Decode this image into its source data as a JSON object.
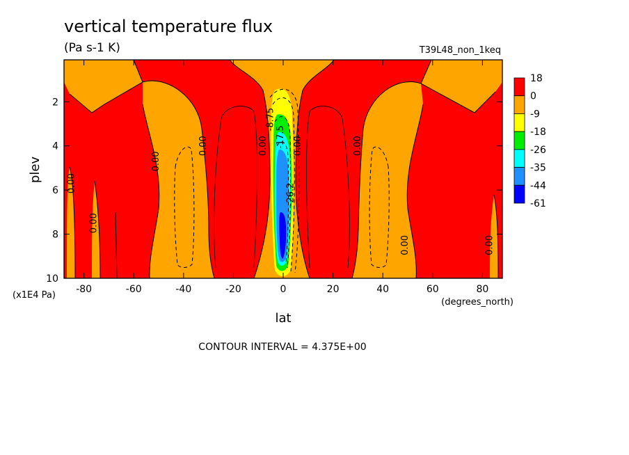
{
  "chart_data": {
    "type": "heatmap",
    "title": "vertical temperature flux",
    "subtitle": "(Pa s-1 K)",
    "run_label": "T39L48_non_1keq",
    "xlabel": "lat",
    "x_units": "(degrees_north)",
    "ylabel": "plev",
    "y_units": "(x1E4 Pa)",
    "xlim": [
      -88,
      88
    ],
    "ylim": [
      10,
      0.1
    ],
    "xticks": [
      -80,
      -60,
      -40,
      -20,
      0,
      20,
      40,
      60,
      80
    ],
    "yticks": [
      2,
      4,
      6,
      8,
      10
    ],
    "xtick_labels": [
      "-80",
      "-60",
      "-40",
      "-20",
      "0",
      "20",
      "40",
      "60",
      "80"
    ],
    "ytick_labels": [
      "2",
      "4",
      "6",
      "8",
      "10"
    ],
    "colorbar_levels": [
      "18",
      "0",
      "-9",
      "-18",
      "-26",
      "-35",
      "-44",
      "-61"
    ],
    "colorbar_colors": [
      "#ff0000",
      "#ffa500",
      "#ffff00",
      "#00ee00",
      "#00ffff",
      "#1e90ff",
      "#0000ff"
    ],
    "contour_labels": [
      {
        "text": "0.00",
        "lat": -84,
        "plev": 5.7
      },
      {
        "text": "0.00",
        "lat": -75,
        "plev": 7.5
      },
      {
        "text": "0.00",
        "lat": -50,
        "plev": 4.7
      },
      {
        "text": "0.00",
        "lat": -31,
        "plev": 4.0
      },
      {
        "text": "0.00",
        "lat": -7,
        "plev": 4.0
      },
      {
        "text": "-8.75",
        "lat": -4,
        "plev": 2.8
      },
      {
        "text": "-17.5",
        "lat": 0,
        "plev": 3.6
      },
      {
        "text": "0.00",
        "lat": 7,
        "plev": 4.0
      },
      {
        "text": "-26.2",
        "lat": 4,
        "plev": 6.2
      },
      {
        "text": "0.00",
        "lat": 31,
        "plev": 4.0
      },
      {
        "text": "0.00",
        "lat": 50,
        "plev": 8.5
      },
      {
        "text": "0.00",
        "lat": 84,
        "plev": 8.5
      }
    ],
    "footer": "CONTOUR INTERVAL = 4.375E+00",
    "grid": false
  }
}
